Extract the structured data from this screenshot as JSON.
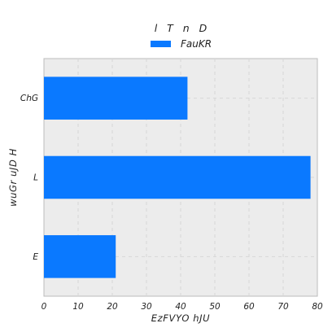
{
  "chart_data": {
    "type": "bar",
    "orientation": "horizontal",
    "title": "l  T n  D",
    "xlabel": "EzFVYO hJU",
    "ylabel": "wuGr uJD H",
    "categories": [
      "E",
      "L",
      "ChG"
    ],
    "series": [
      {
        "name": "FauKR",
        "values": [
          21,
          78,
          42
        ]
      }
    ],
    "xlim": [
      0,
      80
    ],
    "xticks": [
      0,
      10,
      20,
      30,
      40,
      50,
      60,
      70,
      80
    ],
    "grid": true,
    "legend": "top-center",
    "colors": {
      "bar": "#0a79ff",
      "plot_background": "#ececec",
      "frame": "#bbbbbb"
    }
  }
}
